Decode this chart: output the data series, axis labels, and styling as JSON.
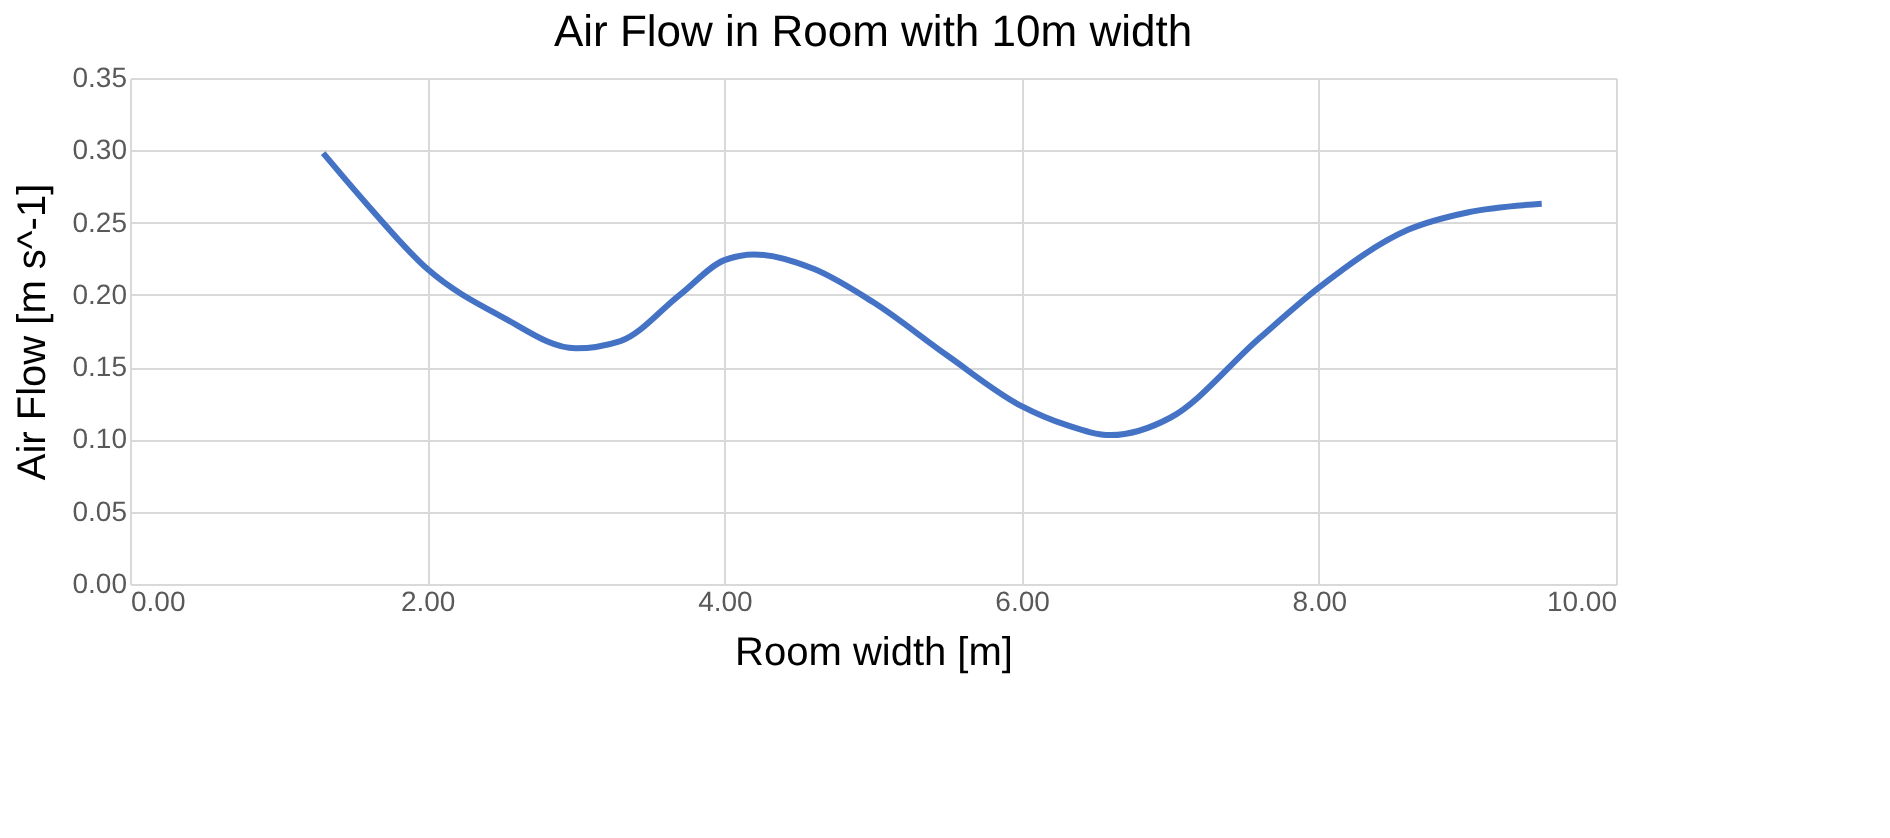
{
  "chart_data": {
    "type": "line",
    "title": "Air Flow in Room with 10m width",
    "xlabel": "Room width [m]",
    "ylabel": "Air Flow [m s^-1]",
    "x": [
      1.3,
      1.6,
      2.0,
      2.5,
      3.0,
      3.3,
      3.7,
      4.0,
      4.2,
      4.6,
      5.0,
      5.5,
      6.0,
      6.3,
      6.6,
      7.0,
      7.6,
      8.0,
      8.6,
      9.0,
      9.5
    ],
    "series": [
      {
        "color": "#4472c4",
        "values": [
          0.298,
          0.262,
          0.218,
          0.185,
          0.163,
          0.168,
          0.2,
          0.224,
          0.228,
          0.218,
          0.195,
          0.158,
          0.123,
          0.11,
          0.103,
          0.115,
          0.17,
          0.205,
          0.245,
          0.257,
          0.263
        ]
      }
    ],
    "xlim": [
      0,
      10
    ],
    "xticks": [
      {
        "value": 0,
        "label": "0.00"
      },
      {
        "value": 2,
        "label": "2.00"
      },
      {
        "value": 4,
        "label": "4.00"
      },
      {
        "value": 6,
        "label": "6.00"
      },
      {
        "value": 8,
        "label": "8.00"
      },
      {
        "value": 10,
        "label": "10.00"
      }
    ],
    "ylim": [
      0,
      0.35
    ],
    "yticks": [
      {
        "value": 0,
        "label": "0.00"
      },
      {
        "value": 0.05,
        "label": "0.05"
      },
      {
        "value": 0.1,
        "label": "0.10"
      },
      {
        "value": 0.15,
        "label": "0.15"
      },
      {
        "value": 0.2,
        "label": "0.20"
      },
      {
        "value": 0.25,
        "label": "0.25"
      },
      {
        "value": 0.3,
        "label": "0.30"
      },
      {
        "value": 0.35,
        "label": "0.35"
      }
    ],
    "grid": true,
    "marker": "none",
    "line_style": "solid"
  }
}
